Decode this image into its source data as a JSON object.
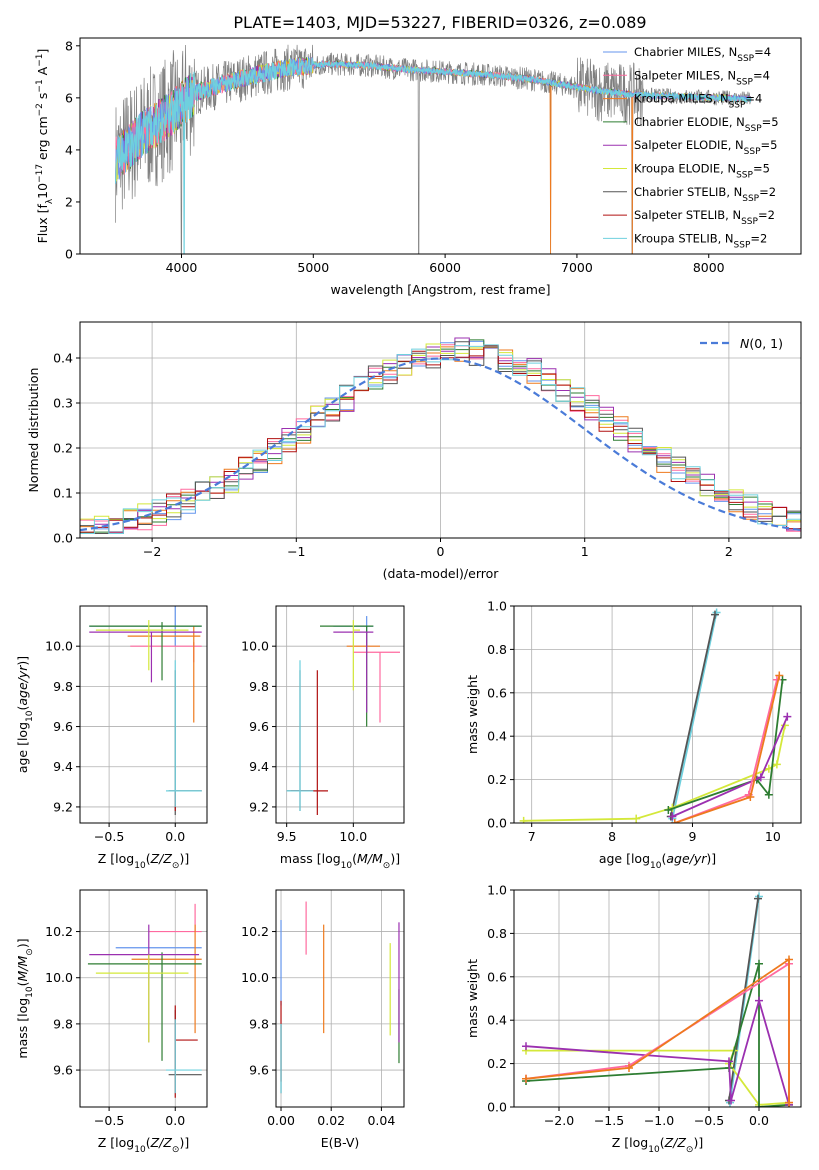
{
  "figure_title": "PLATE=1403, MJD=53227, FIBERID=0326, z=0.089",
  "colors": {
    "chab_miles": "#6495ed",
    "salp_miles": "#ff6a9f",
    "krou_miles": "#ee7a1e",
    "chab_elodie": "#2e7d32",
    "salp_elodie": "#9b30b0",
    "krou_elodie": "#d4e83a",
    "chab_stelib": "#555555",
    "salp_stelib": "#b01010",
    "krou_stelib": "#6fd0de",
    "data_spectrum": "#808080",
    "gaussian": "#4a7bd8"
  },
  "legend": {
    "spectrum": [
      {
        "key": "chab_miles",
        "pre": "Chabrier MILES, N",
        "sub": "SSP",
        "post": "=4"
      },
      {
        "key": "salp_miles",
        "pre": "Salpeter MILES, N",
        "sub": "SSP",
        "post": "=4"
      },
      {
        "key": "krou_miles",
        "pre": "Kroupa MILES, N",
        "sub": "SSP",
        "post": "=4"
      },
      {
        "key": "chab_elodie",
        "pre": "Chabrier ELODIE, N",
        "sub": "SSP",
        "post": "=5"
      },
      {
        "key": "salp_elodie",
        "pre": "Salpeter ELODIE, N",
        "sub": "SSP",
        "post": "=5"
      },
      {
        "key": "krou_elodie",
        "pre": "Kroupa ELODIE, N",
        "sub": "SSP",
        "post": "=5"
      },
      {
        "key": "chab_stelib",
        "pre": "Chabrier STELIB, N",
        "sub": "SSP",
        "post": "=2"
      },
      {
        "key": "salp_stelib",
        "pre": "Salpeter STELIB, N",
        "sub": "SSP",
        "post": "=2"
      },
      {
        "key": "krou_stelib",
        "pre": "Kroupa STELIB, N",
        "sub": "SSP",
        "post": "=2"
      }
    ],
    "histogram": "N(0,1)"
  },
  "chart_data": [
    {
      "id": "spectrum",
      "type": "line",
      "xlabel": "wavelength [Angstrom, rest frame]",
      "ylabel": "Flux [f",
      "ylabel_sub": "λ",
      "ylabel_mid": "10",
      "ylabel_sup1": "−17",
      "ylabel_post": " erg cm",
      "ylabel_sup2": "−2",
      "ylabel_post2": " s",
      "ylabel_sup3": "−1",
      "ylabel_post3": " A",
      "ylabel_sup4": "−1",
      "ylabel_end": "]",
      "xlim": [
        3230,
        8700
      ],
      "ylim": [
        0,
        8.3
      ],
      "xticks": [
        4000,
        5000,
        6000,
        7000,
        8000
      ],
      "yticks": [
        0,
        2,
        4,
        6,
        8
      ],
      "continuum": {
        "x": [
          3500,
          3700,
          3900,
          4100,
          4300,
          4500,
          4800,
          5100,
          5400,
          5700,
          6000,
          6300,
          6600,
          6900,
          7200,
          7500,
          7800,
          8100,
          8300
        ],
        "y": [
          3.6,
          4.6,
          5.3,
          6.2,
          6.5,
          6.8,
          7.15,
          7.3,
          7.25,
          7.1,
          7.0,
          6.9,
          6.75,
          6.5,
          6.25,
          6.1,
          6.05,
          6.0,
          5.95
        ]
      },
      "data_range": [
        3500,
        8320
      ],
      "dropouts": [
        4000,
        5800,
        6800,
        7420
      ]
    },
    {
      "id": "residual_histogram",
      "type": "histogram",
      "xlabel": "(data-model)/error",
      "ylabel": "Normed distribution",
      "xlim": [
        -2.5,
        2.5
      ],
      "ylim": [
        0,
        0.48
      ],
      "xticks": [
        -2,
        -1,
        0,
        1,
        2
      ],
      "yticks": [
        0.0,
        0.1,
        0.2,
        0.3,
        0.4
      ],
      "bin_width": 0.1,
      "gaussian": {
        "mean": 0,
        "sigma": 1
      }
    },
    {
      "id": "age_vs_Z",
      "type": "errorbar",
      "xlabel": "Z [log10(Z/Z⊙)]",
      "ylabel": "age  [log10(age/yr)]",
      "xlim": [
        -0.72,
        0.24
      ],
      "ylim": [
        9.12,
        10.2
      ],
      "xticks": [
        -0.5,
        0.0
      ],
      "yticks": [
        9.2,
        9.4,
        9.6,
        9.8,
        10.0
      ],
      "points": [
        {
          "key": "chab_miles",
          "x": 0.0,
          "y": 10.1,
          "xe": [
            0.65,
            0.2
          ],
          "ye": [
            0.1,
            0.1
          ]
        },
        {
          "key": "salp_miles",
          "x": 0.14,
          "y": 10.0,
          "xe": [
            0.48,
            0.06
          ],
          "ye": [
            0.08,
            0.02
          ]
        },
        {
          "key": "krou_miles",
          "x": 0.14,
          "y": 10.05,
          "xe": [
            0.5,
            0.05
          ],
          "ye": [
            0.43,
            0.05
          ]
        },
        {
          "key": "chab_elodie",
          "x": -0.1,
          "y": 10.1,
          "xe": [
            0.55,
            0.3
          ],
          "ye": [
            0.27,
            0.02
          ]
        },
        {
          "key": "salp_elodie",
          "x": -0.18,
          "y": 10.07,
          "xe": [
            0.47,
            0.38
          ],
          "ye": [
            0.25,
            0.0
          ]
        },
        {
          "key": "krou_elodie",
          "x": -0.2,
          "y": 10.08,
          "xe": [
            0.4,
            0.3
          ],
          "ye": [
            0.2,
            0.05
          ]
        },
        {
          "key": "chab_stelib",
          "x": 0.0,
          "y": 9.28,
          "xe": [
            0.05,
            0.2
          ],
          "ye": [
            0.12,
            0.6
          ]
        },
        {
          "key": "salp_stelib",
          "x": 0.0,
          "y": 9.28,
          "xe": [
            0.0,
            0.0
          ],
          "ye": [
            0.1,
            0.0
          ]
        },
        {
          "key": "krou_stelib",
          "x": 0.0,
          "y": 9.28,
          "xe": [
            0.07,
            0.2
          ],
          "ye": [
            0.08,
            0.65
          ]
        }
      ]
    },
    {
      "id": "age_vs_mass",
      "type": "errorbar",
      "xlabel": "mass [log10(M/M⊙)]",
      "ylabel": "",
      "xlim": [
        9.42,
        10.38
      ],
      "ylim": [
        9.12,
        10.2
      ],
      "xticks": [
        9.5,
        10.0
      ],
      "yticks": [
        9.2,
        9.4,
        9.6,
        9.8,
        10.0
      ],
      "points": [
        {
          "key": "chab_miles",
          "x": 10.1,
          "y": 10.1,
          "xe": [
            0.25,
            0.05
          ],
          "ye": [
            0.1,
            0.05
          ]
        },
        {
          "key": "salp_miles",
          "x": 10.2,
          "y": 9.97,
          "xe": [
            0.2,
            0.15
          ],
          "ye": [
            0.35,
            0.0
          ]
        },
        {
          "key": "krou_miles",
          "x": 10.0,
          "y": 10.0,
          "xe": [
            0.05,
            0.2
          ],
          "ye": [
            0.0,
            0.0
          ]
        },
        {
          "key": "chab_elodie",
          "x": 10.1,
          "y": 10.1,
          "xe": [
            0.35,
            0.05
          ],
          "ye": [
            0.5,
            0.0
          ]
        },
        {
          "key": "salp_elodie",
          "x": 10.1,
          "y": 10.07,
          "xe": [
            0.25,
            0.05
          ],
          "ye": [
            0.4,
            0.0
          ]
        },
        {
          "key": "krou_elodie",
          "x": 10.0,
          "y": 10.08,
          "xe": [
            0.0,
            0.05
          ],
          "ye": [
            0.3,
            0.05
          ]
        },
        {
          "key": "chab_stelib",
          "x": 9.6,
          "y": 9.28,
          "xe": [
            0.1,
            0.1
          ],
          "ye": [
            0.1,
            0.6
          ]
        },
        {
          "key": "salp_stelib",
          "x": 9.73,
          "y": 9.28,
          "xe": [
            0.2,
            0.08
          ],
          "ye": [
            0.12,
            0.6
          ]
        },
        {
          "key": "krou_stelib",
          "x": 9.6,
          "y": 9.28,
          "xe": [
            0.1,
            0.1
          ],
          "ye": [
            0.1,
            0.65
          ]
        }
      ]
    },
    {
      "id": "weight_vs_age",
      "type": "line",
      "xlabel": "age  [log10(age/yr)]",
      "ylabel": "mass weight",
      "xlim": [
        6.78,
        10.35
      ],
      "ylim": [
        0,
        1.0
      ],
      "xticks": [
        7,
        8,
        9,
        10
      ],
      "yticks": [
        0.0,
        0.2,
        0.4,
        0.6,
        0.8,
        1.0
      ],
      "series": [
        {
          "key": "krou_stelib",
          "x": [
            8.75,
            9.3
          ],
          "y": [
            0.02,
            0.97
          ]
        },
        {
          "key": "chab_stelib",
          "x": [
            8.73,
            9.28
          ],
          "y": [
            0.03,
            0.96
          ]
        },
        {
          "key": "krou_elodie",
          "x": [
            6.9,
            8.3,
            8.75,
            9.95,
            10.05,
            10.15
          ],
          "y": [
            0.01,
            0.02,
            0.07,
            0.25,
            0.27,
            0.45
          ]
        },
        {
          "key": "chab_elodie",
          "x": [
            8.7,
            9.8,
            9.95,
            10.12
          ],
          "y": [
            0.06,
            0.2,
            0.13,
            0.66
          ]
        },
        {
          "key": "salp_elodie",
          "x": [
            8.75,
            9.85,
            10.18
          ],
          "y": [
            0.03,
            0.21,
            0.49
          ]
        },
        {
          "key": "salp_miles",
          "x": [
            8.78,
            9.7,
            10.05
          ],
          "y": [
            0.0,
            0.13,
            0.66
          ]
        },
        {
          "key": "krou_miles",
          "x": [
            8.78,
            9.72,
            10.08
          ],
          "y": [
            0.0,
            0.12,
            0.68
          ]
        }
      ]
    },
    {
      "id": "mass_vs_Z",
      "type": "errorbar",
      "xlabel": "Z [log10(Z/Z⊙)]",
      "ylabel": "mass [log10(M/M⊙)]",
      "xlim": [
        -0.72,
        0.24
      ],
      "ylim": [
        9.44,
        10.38
      ],
      "xticks": [
        -0.5,
        0.0
      ],
      "yticks": [
        9.6,
        9.8,
        10.0,
        10.2
      ],
      "points": [
        {
          "key": "chab_miles",
          "x": 0.0,
          "y": 10.13,
          "xe": [
            0.45,
            0.2
          ],
          "ye": [
            0.0,
            0.0
          ]
        },
        {
          "key": "salp_miles",
          "x": 0.15,
          "y": 10.2,
          "xe": [
            0.35,
            0.05
          ],
          "ye": [
            0.0,
            0.12
          ]
        },
        {
          "key": "krou_miles",
          "x": 0.15,
          "y": 10.08,
          "xe": [
            0.48,
            0.05
          ],
          "ye": [
            0.32,
            0.15
          ]
        },
        {
          "key": "chab_elodie",
          "x": -0.1,
          "y": 10.06,
          "xe": [
            0.56,
            0.3
          ],
          "ye": [
            0.42,
            0.05
          ]
        },
        {
          "key": "salp_elodie",
          "x": -0.2,
          "y": 10.1,
          "xe": [
            0.45,
            0.38
          ],
          "ye": [
            0.38,
            0.13
          ]
        },
        {
          "key": "krou_elodie",
          "x": -0.2,
          "y": 10.02,
          "xe": [
            0.4,
            0.3
          ],
          "ye": [
            0.3,
            0.08
          ]
        },
        {
          "key": "chab_stelib",
          "x": 0.0,
          "y": 9.58,
          "xe": [
            0.05,
            0.2
          ],
          "ye": [
            0.08,
            0.28
          ]
        },
        {
          "key": "salp_stelib",
          "x": 0.0,
          "y": 9.73,
          "xe": [
            0.0,
            0.17
          ],
          "ye": [
            0.25,
            0.15
          ]
        },
        {
          "key": "krou_stelib",
          "x": 0.0,
          "y": 9.6,
          "xe": [
            0.07,
            0.2
          ],
          "ye": [
            0.1,
            0.22
          ]
        }
      ]
    },
    {
      "id": "mass_vs_EBV",
      "type": "errorbar",
      "xlabel": "E(B-V)",
      "ylabel": "",
      "xlim": [
        -0.002,
        0.049
      ],
      "ylim": [
        9.44,
        10.38
      ],
      "xticks": [
        0.0,
        0.02,
        0.04
      ],
      "yticks": [
        9.6,
        9.8,
        10.0,
        10.2
      ],
      "points": [
        {
          "key": "chab_miles",
          "x": 0.0,
          "y": 10.13,
          "xe": [
            0,
            0
          ],
          "ye": [
            0.25,
            0.12
          ]
        },
        {
          "key": "salp_miles",
          "x": 0.01,
          "y": 10.2,
          "xe": [
            0,
            0
          ],
          "ye": [
            0.1,
            0.13
          ]
        },
        {
          "key": "krou_miles",
          "x": 0.017,
          "y": 10.08,
          "xe": [
            0,
            0
          ],
          "ye": [
            0.32,
            0.15
          ]
        },
        {
          "key": "chab_elodie",
          "x": 0.047,
          "y": 9.85,
          "xe": [
            0,
            0
          ],
          "ye": [
            0.22,
            0.1
          ]
        },
        {
          "key": "salp_elodie",
          "x": 0.047,
          "y": 10.0,
          "xe": [
            0,
            0
          ],
          "ye": [
            0.28,
            0.24
          ]
        },
        {
          "key": "krou_elodie",
          "x": 0.0435,
          "y": 9.95,
          "xe": [
            0,
            0
          ],
          "ye": [
            0.2,
            0.2
          ]
        },
        {
          "key": "chab_stelib",
          "x": 0.0,
          "y": 9.6,
          "xe": [
            0,
            0
          ],
          "ye": [
            0.1,
            0.2
          ]
        },
        {
          "key": "salp_stelib",
          "x": 0.0,
          "y": 9.75,
          "xe": [
            0,
            0
          ],
          "ye": [
            0.2,
            0.15
          ]
        },
        {
          "key": "krou_stelib",
          "x": 0.0,
          "y": 9.6,
          "xe": [
            0,
            0
          ],
          "ye": [
            0.1,
            0.2
          ]
        }
      ]
    },
    {
      "id": "weight_vs_Z",
      "type": "line",
      "xlabel": "Z [log10(Z/Z⊙)]",
      "ylabel": "mass weight",
      "xlim": [
        -2.45,
        0.42
      ],
      "ylim": [
        0,
        1.0
      ],
      "xticks": [
        -2.0,
        -1.5,
        -1.0,
        -0.5,
        0.0
      ],
      "yticks": [
        0.0,
        0.2,
        0.4,
        0.6,
        0.8,
        1.0
      ],
      "series": [
        {
          "key": "krou_stelib",
          "x": [
            -0.29,
            0.0
          ],
          "y": [
            0.02,
            0.97
          ]
        },
        {
          "key": "chab_stelib",
          "x": [
            -0.3,
            -0.01
          ],
          "y": [
            0.03,
            0.96
          ]
        },
        {
          "key": "krou_elodie",
          "x": [
            -2.33,
            -0.25,
            -0.3,
            0.0,
            0.3
          ],
          "y": [
            0.26,
            0.26,
            0.2,
            0.01,
            0.02
          ]
        },
        {
          "key": "chab_elodie",
          "x": [
            -2.33,
            -0.3,
            0.0,
            0.0,
            0.3
          ],
          "y": [
            0.12,
            0.18,
            0.66,
            0.0,
            0.01
          ]
        },
        {
          "key": "salp_elodie",
          "x": [
            -2.33,
            -0.3,
            -0.28,
            0.0,
            0.3
          ],
          "y": [
            0.28,
            0.21,
            0.03,
            0.49,
            0.01
          ]
        },
        {
          "key": "salp_miles",
          "x": [
            -2.33,
            -1.3,
            0.3,
            0.3
          ],
          "y": [
            0.13,
            0.19,
            0.66,
            0.02
          ]
        },
        {
          "key": "krou_miles",
          "x": [
            -2.33,
            -1.3,
            0.3,
            0.3
          ],
          "y": [
            0.13,
            0.18,
            0.68,
            0.02
          ]
        }
      ]
    }
  ]
}
